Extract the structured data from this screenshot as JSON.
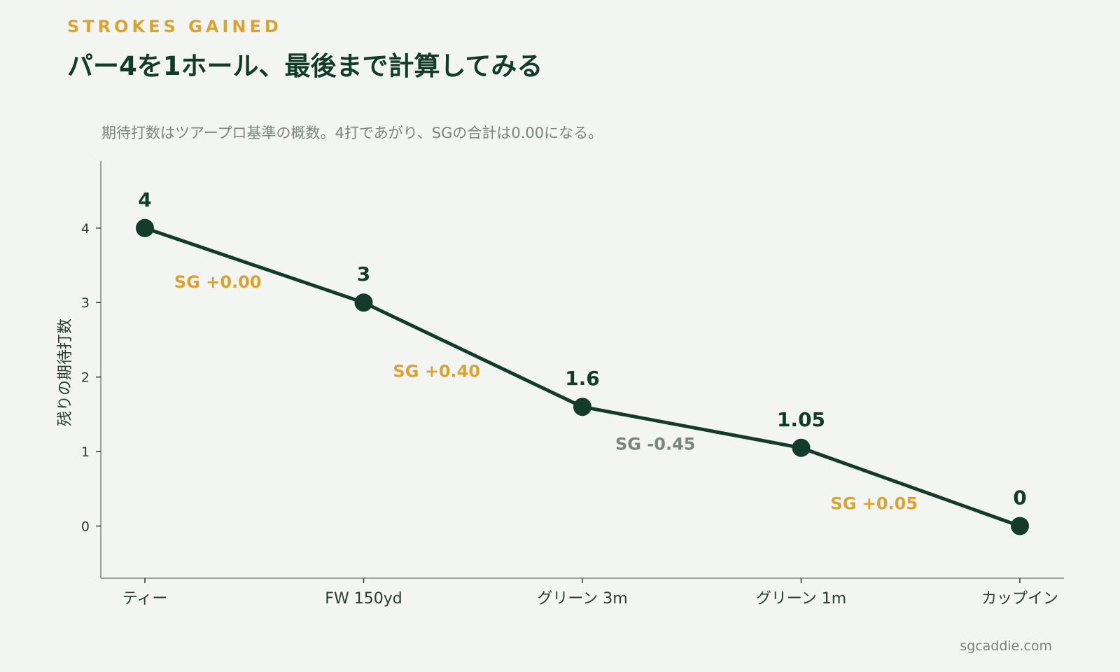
{
  "header": {
    "eyebrow": "STROKES GAINED",
    "title": "パー4を1ホール、最後まで計算してみる",
    "subtitle": "期待打数はツアープロ基準の概数。4打であがり、SGの合計は0.00になる。"
  },
  "footer": {
    "site": "sgcaddie.com"
  },
  "colors": {
    "line": "#123a2d",
    "positive": "#d9a334",
    "negative": "#7b857e",
    "axis": "#7b857e"
  },
  "chart_data": {
    "type": "line",
    "categories": [
      "ティー",
      "FW 150yd",
      "グリーン 3m",
      "グリーン 1m",
      "カップイン"
    ],
    "values": [
      4,
      3,
      1.6,
      1.05,
      0
    ],
    "value_labels": [
      "4",
      "3",
      "1.6",
      "1.05",
      "0"
    ],
    "ylabel": "残りの期待打数",
    "yticks": [
      0,
      1,
      2,
      3,
      4
    ],
    "ylim": [
      -0.7,
      4.9
    ],
    "grid": false,
    "annotations": [
      {
        "between": [
          0,
          1
        ],
        "text": "SG +0.00",
        "sign": "positive"
      },
      {
        "between": [
          1,
          2
        ],
        "text": "SG +0.40",
        "sign": "positive"
      },
      {
        "between": [
          2,
          3
        ],
        "text": "SG -0.45",
        "sign": "negative"
      },
      {
        "between": [
          3,
          4
        ],
        "text": "SG +0.05",
        "sign": "positive"
      }
    ]
  }
}
